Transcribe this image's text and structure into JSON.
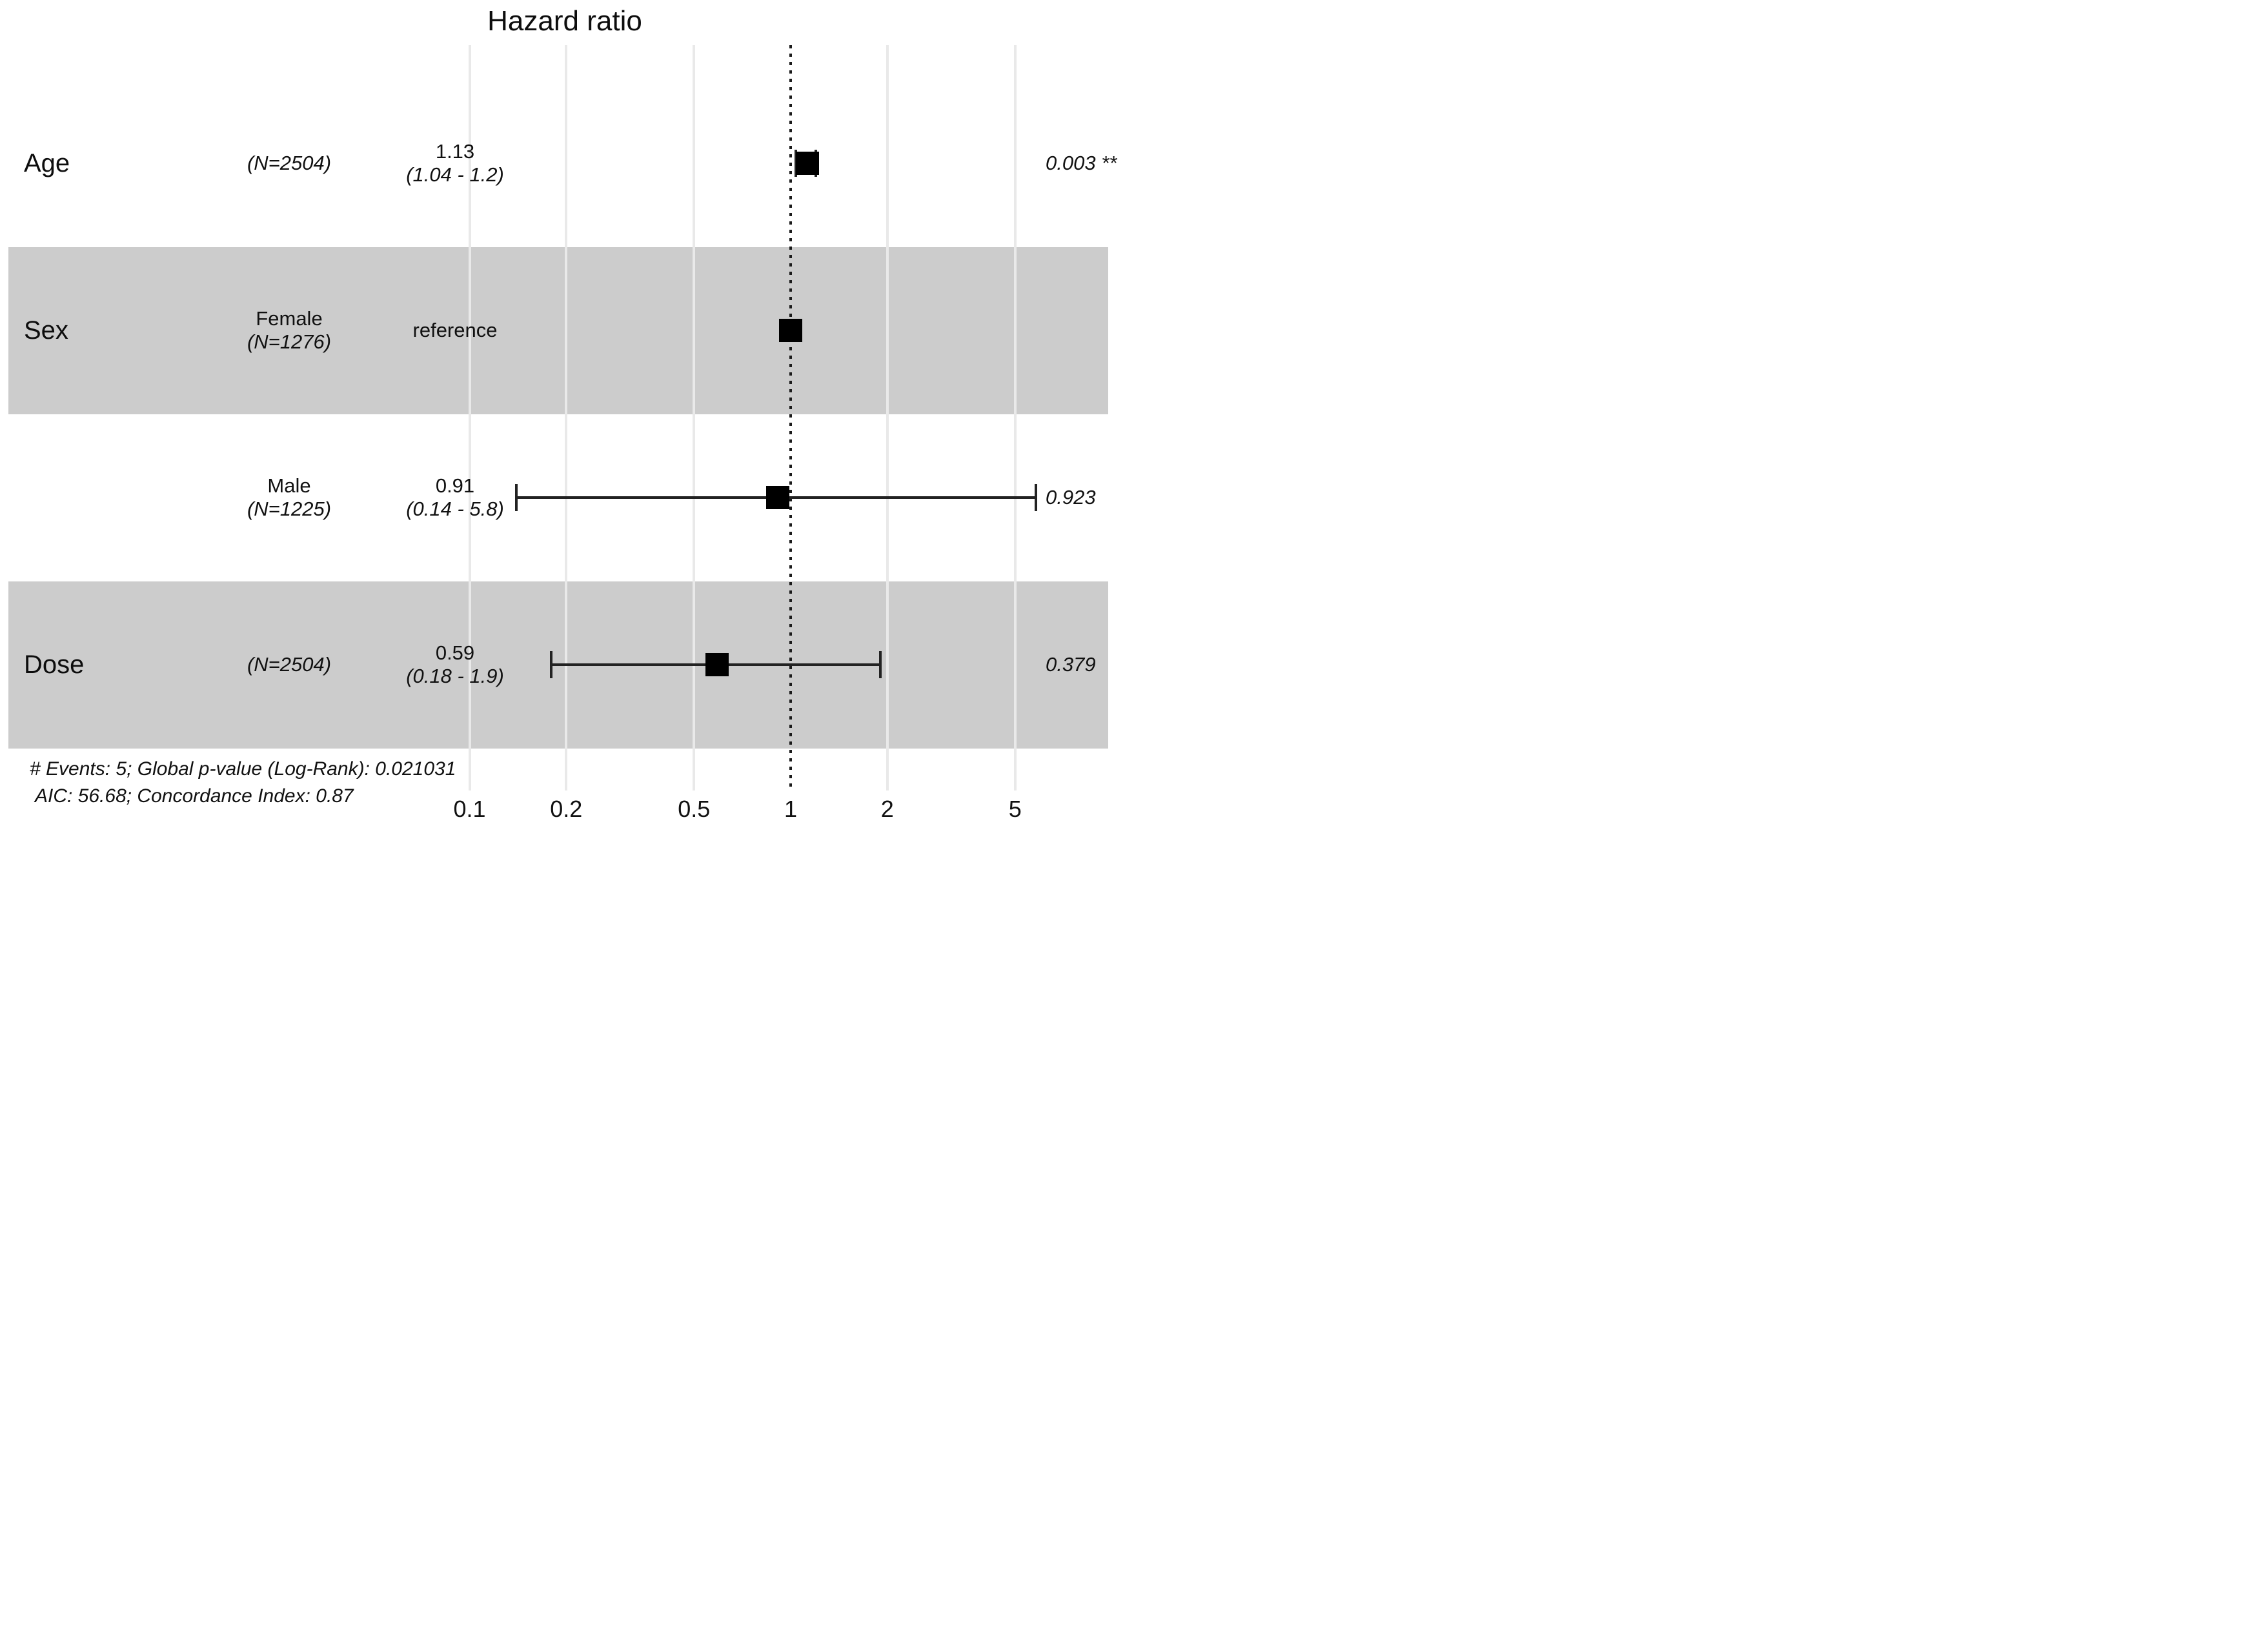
{
  "title": "Hazard ratio",
  "colors": {
    "background": "#ffffff",
    "band": "#cccccc",
    "gridline": "#e9e9e9",
    "reference_line": "#1a1a1a",
    "marker": "#000000",
    "error_bar": "#222222",
    "text": "#111111"
  },
  "axis": {
    "scale": "log10",
    "ticks": [
      {
        "label": "0.1",
        "value": 0.1
      },
      {
        "label": "0.2",
        "value": 0.2
      },
      {
        "label": "0.5",
        "value": 0.5
      },
      {
        "label": "1",
        "value": 1
      },
      {
        "label": "2",
        "value": 2
      },
      {
        "label": "5",
        "value": 5
      }
    ],
    "reference_value": 1
  },
  "rows": [
    {
      "variable": "Age",
      "level": "",
      "n": "(N=2504)",
      "estimate_label": "1.13",
      "ci_label": "(1.04 - 1.2)",
      "p_label": "0.003 **",
      "hr": 1.13,
      "ci_low": 1.04,
      "ci_high": 1.2,
      "reference": false,
      "shaded": false
    },
    {
      "variable": "Sex",
      "level": "Female",
      "n": "(N=1276)",
      "estimate_label": "reference",
      "ci_label": "",
      "p_label": "",
      "hr": 1.0,
      "ci_low": null,
      "ci_high": null,
      "reference": true,
      "shaded": true
    },
    {
      "variable": "",
      "level": "Male",
      "n": "(N=1225)",
      "estimate_label": "0.91",
      "ci_label": "(0.14 - 5.8)",
      "p_label": "0.923",
      "hr": 0.91,
      "ci_low": 0.14,
      "ci_high": 5.8,
      "reference": false,
      "shaded": false
    },
    {
      "variable": "Dose",
      "level": "",
      "n": "(N=2504)",
      "estimate_label": "0.59",
      "ci_label": "(0.18 - 1.9)",
      "p_label": "0.379",
      "hr": 0.59,
      "ci_low": 0.18,
      "ci_high": 1.9,
      "reference": false,
      "shaded": true
    }
  ],
  "footer": {
    "line1": "# Events: 5; Global p-value (Log-Rank): 0.021031",
    "line2": "AIC: 56.68; Concordance Index: 0.87"
  },
  "chart_data": {
    "type": "scatter",
    "subtype": "forest-plot",
    "title": "Hazard ratio",
    "x_axis": {
      "scale": "log10",
      "tick_values": [
        0.1,
        0.2,
        0.5,
        1,
        2,
        5
      ],
      "tick_labels": [
        "0.1",
        "0.2",
        "0.5",
        "1",
        "2",
        "5"
      ],
      "reference_line": 1,
      "grid": true
    },
    "legend": "none",
    "series": [
      {
        "name": "Age",
        "n": 2504,
        "hr": 1.13,
        "ci_low": 1.04,
        "ci_high": 1.2,
        "p_value": "0.003",
        "significance": "**",
        "shaded_band": false
      },
      {
        "name": "Sex: Female",
        "n": 1276,
        "hr": 1.0,
        "ci_low": null,
        "ci_high": null,
        "p_value": null,
        "note": "reference",
        "shaded_band": true
      },
      {
        "name": "Sex: Male",
        "n": 1225,
        "hr": 0.91,
        "ci_low": 0.14,
        "ci_high": 5.8,
        "p_value": "0.923",
        "significance": "",
        "shaded_band": false
      },
      {
        "name": "Dose",
        "n": 2504,
        "hr": 0.59,
        "ci_low": 0.18,
        "ci_high": 1.9,
        "p_value": "0.379",
        "significance": "",
        "shaded_band": true
      }
    ],
    "annotations": [
      "# Events: 5; Global p-value (Log-Rank): 0.021031",
      "AIC: 56.68; Concordance Index: 0.87"
    ]
  }
}
